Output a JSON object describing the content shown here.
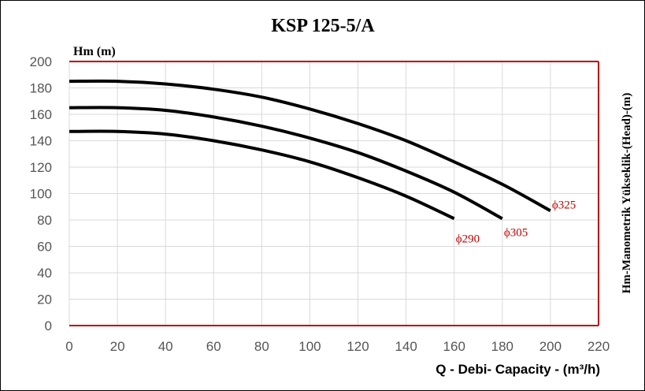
{
  "chart_data": {
    "type": "line",
    "title": "KSP 125-5/A",
    "ylabel": "Hm (m)",
    "xlabel": "Q - Debi- Capacity - (m³/h)",
    "right_label": "Hm-Manometrik Yükseklik-(Head)-(m)",
    "xlim": [
      0,
      220
    ],
    "ylim": [
      0,
      200
    ],
    "xticks": [
      0,
      20,
      40,
      60,
      80,
      100,
      120,
      140,
      160,
      180,
      200,
      220
    ],
    "yticks": [
      0,
      20,
      40,
      60,
      80,
      100,
      120,
      140,
      160,
      180,
      200
    ],
    "grid": true,
    "series": [
      {
        "name": "ϕ290",
        "x": [
          0,
          20,
          40,
          60,
          80,
          100,
          120,
          140,
          160
        ],
        "y": [
          147,
          147,
          145,
          140,
          133,
          124,
          112,
          98,
          81
        ]
      },
      {
        "name": "ϕ305",
        "x": [
          0,
          20,
          40,
          60,
          80,
          100,
          120,
          140,
          160,
          180
        ],
        "y": [
          165,
          165,
          163,
          158,
          151,
          142,
          131,
          117,
          101,
          81
        ]
      },
      {
        "name": "ϕ325",
        "x": [
          0,
          20,
          40,
          60,
          80,
          100,
          120,
          140,
          160,
          180,
          200
        ],
        "y": [
          185,
          185,
          183,
          179,
          173,
          164,
          153,
          140,
          124,
          107,
          87
        ]
      }
    ],
    "colors": {
      "curve": "#000000",
      "plot_border": "#c00000",
      "grid": "#d9d9d9",
      "curve_label": "#c00000",
      "tick": "#595959"
    }
  }
}
